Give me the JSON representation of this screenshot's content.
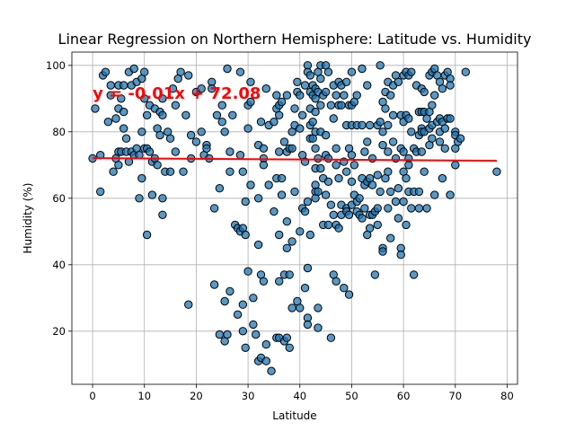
{
  "chart_data": {
    "type": "scatter",
    "title": "Linear Regression on Northern Hemisphere: Latitude vs. Humidity",
    "xlabel": "Latitude",
    "ylabel": "Humidity (%)",
    "xlim": [
      -4,
      82
    ],
    "ylim": [
      4,
      104
    ],
    "xticks": [
      0,
      10,
      20,
      30,
      40,
      50,
      60,
      70,
      80
    ],
    "yticks": [
      20,
      40,
      60,
      80,
      100
    ],
    "grid": true,
    "point_color": "#1f77b4",
    "line_color": "#ff0000",
    "regression": {
      "slope": -0.01,
      "intercept": 72.08,
      "x_range": [
        0,
        78
      ],
      "equation": "y = -0.01x + 72.08",
      "equation_anchor": [
        0,
        90
      ]
    },
    "points": [
      [
        0,
        72
      ],
      [
        0.5,
        87
      ],
      [
        1.5,
        73
      ],
      [
        1.5,
        62
      ],
      [
        2,
        97
      ],
      [
        2.5,
        98
      ],
      [
        3,
        83
      ],
      [
        3.5,
        91
      ],
      [
        3.5,
        94
      ],
      [
        4,
        68
      ],
      [
        4.5,
        72
      ],
      [
        4.5,
        84
      ],
      [
        5,
        94
      ],
      [
        5,
        87
      ],
      [
        5,
        74
      ],
      [
        5,
        70
      ],
      [
        5.5,
        90
      ],
      [
        5.5,
        74
      ],
      [
        6,
        94
      ],
      [
        6,
        86
      ],
      [
        6,
        81
      ],
      [
        6.5,
        78
      ],
      [
        6.5,
        74
      ],
      [
        7,
        98
      ],
      [
        7,
        71
      ],
      [
        7.5,
        94
      ],
      [
        7.5,
        74
      ],
      [
        8,
        99
      ],
      [
        8,
        73
      ],
      [
        8.5,
        95
      ],
      [
        8.5,
        75
      ],
      [
        9,
        73
      ],
      [
        9,
        60
      ],
      [
        9.5,
        96
      ],
      [
        9.5,
        80
      ],
      [
        9.5,
        66
      ],
      [
        10,
        98
      ],
      [
        10,
        90
      ],
      [
        10,
        75
      ],
      [
        10.5,
        85
      ],
      [
        10.5,
        75
      ],
      [
        10.5,
        49
      ],
      [
        11,
        88
      ],
      [
        11,
        74
      ],
      [
        11.5,
        71
      ],
      [
        11.5,
        61
      ],
      [
        12,
        87
      ],
      [
        12,
        72
      ],
      [
        12.5,
        81
      ],
      [
        12.5,
        70
      ],
      [
        13,
        86
      ],
      [
        13,
        79
      ],
      [
        13.5,
        90
      ],
      [
        13.5,
        85
      ],
      [
        13.5,
        60
      ],
      [
        13.5,
        55
      ],
      [
        14,
        68
      ],
      [
        14.5,
        80
      ],
      [
        15,
        78
      ],
      [
        15,
        68
      ],
      [
        15.5,
        93
      ],
      [
        16,
        88
      ],
      [
        16,
        74
      ],
      [
        16.5,
        96
      ],
      [
        17,
        98
      ],
      [
        17.5,
        68
      ],
      [
        18,
        85
      ],
      [
        18.5,
        97
      ],
      [
        18.5,
        28
      ],
      [
        19,
        79
      ],
      [
        19,
        72
      ],
      [
        20,
        92
      ],
      [
        20,
        77
      ],
      [
        21,
        93
      ],
      [
        21,
        80
      ],
      [
        21.5,
        73
      ],
      [
        22,
        76
      ],
      [
        22,
        75
      ],
      [
        22.5,
        72
      ],
      [
        23,
        95
      ],
      [
        23,
        93
      ],
      [
        23.5,
        57
      ],
      [
        23.5,
        34
      ],
      [
        24,
        85
      ],
      [
        24.5,
        63
      ],
      [
        24.5,
        19
      ],
      [
        25,
        88
      ],
      [
        25,
        83
      ],
      [
        25.5,
        80
      ],
      [
        25.5,
        29
      ],
      [
        25.5,
        17
      ],
      [
        26,
        99
      ],
      [
        26,
        19
      ],
      [
        26.5,
        74
      ],
      [
        26.5,
        68
      ],
      [
        26.5,
        32
      ],
      [
        27,
        85
      ],
      [
        27.5,
        52
      ],
      [
        28,
        51
      ],
      [
        28,
        25
      ],
      [
        28.5,
        98
      ],
      [
        28.5,
        73
      ],
      [
        28.5,
        50
      ],
      [
        29,
        68
      ],
      [
        29,
        51
      ],
      [
        29,
        28
      ],
      [
        29,
        20
      ],
      [
        29.5,
        59
      ],
      [
        29.5,
        49
      ],
      [
        29.5,
        15
      ],
      [
        30,
        88
      ],
      [
        30,
        81
      ],
      [
        30,
        38
      ],
      [
        30.5,
        95
      ],
      [
        30.5,
        89
      ],
      [
        30.5,
        64
      ],
      [
        31,
        30
      ],
      [
        31,
        22
      ],
      [
        31.5,
        19
      ],
      [
        32,
        76
      ],
      [
        32,
        60
      ],
      [
        32,
        46
      ],
      [
        32,
        11
      ],
      [
        32.5,
        83
      ],
      [
        32.5,
        37
      ],
      [
        32.5,
        12
      ],
      [
        33,
        75
      ],
      [
        33,
        72
      ],
      [
        33,
        70
      ],
      [
        33,
        35
      ],
      [
        33.5,
        93
      ],
      [
        33.5,
        16
      ],
      [
        33.5,
        11
      ],
      [
        34,
        82
      ],
      [
        34,
        64
      ],
      [
        34.5,
        8
      ],
      [
        35,
        83
      ],
      [
        35,
        56
      ],
      [
        35.5,
        91
      ],
      [
        35.5,
        87
      ],
      [
        35.5,
        66
      ],
      [
        35.5,
        18
      ],
      [
        36,
        88
      ],
      [
        36,
        85
      ],
      [
        36,
        74
      ],
      [
        36,
        49
      ],
      [
        36,
        35
      ],
      [
        36,
        18
      ],
      [
        36.5,
        89
      ],
      [
        36.5,
        66
      ],
      [
        36.5,
        61
      ],
      [
        37,
        77
      ],
      [
        37,
        37
      ],
      [
        37,
        17
      ],
      [
        37.5,
        91
      ],
      [
        37.5,
        74
      ],
      [
        37.5,
        53
      ],
      [
        37.5,
        45
      ],
      [
        37.5,
        18
      ],
      [
        38,
        75
      ],
      [
        38,
        37
      ],
      [
        38,
        15
      ],
      [
        38.5,
        80
      ],
      [
        38.5,
        75
      ],
      [
        38.5,
        47
      ],
      [
        38.5,
        27
      ],
      [
        39,
        87
      ],
      [
        39,
        82
      ],
      [
        39,
        62
      ],
      [
        39.5,
        95
      ],
      [
        39.5,
        92
      ],
      [
        39.5,
        29
      ],
      [
        40,
        91
      ],
      [
        40,
        81
      ],
      [
        40,
        50
      ],
      [
        40,
        27
      ],
      [
        40.5,
        85
      ],
      [
        40.5,
        73
      ],
      [
        40.5,
        57
      ],
      [
        41,
        94
      ],
      [
        41,
        71
      ],
      [
        41,
        56
      ],
      [
        41,
        33
      ],
      [
        41.5,
        100
      ],
      [
        41.5,
        98
      ],
      [
        41.5,
        59
      ],
      [
        41.5,
        39
      ],
      [
        41.5,
        24
      ],
      [
        41.5,
        22
      ],
      [
        42,
        97
      ],
      [
        42,
        92
      ],
      [
        42,
        87
      ],
      [
        42,
        82
      ],
      [
        42,
        78
      ],
      [
        42,
        49
      ],
      [
        42.5,
        94
      ],
      [
        42.5,
        91
      ],
      [
        42.5,
        83
      ],
      [
        42.5,
        78
      ],
      [
        43,
        93
      ],
      [
        43,
        90
      ],
      [
        43,
        86
      ],
      [
        43,
        80
      ],
      [
        43,
        75
      ],
      [
        43,
        69
      ],
      [
        43,
        64
      ],
      [
        43,
        62
      ],
      [
        43,
        60
      ],
      [
        43.5,
        98
      ],
      [
        43.5,
        92
      ],
      [
        43.5,
        72
      ],
      [
        43.5,
        62
      ],
      [
        43.5,
        27
      ],
      [
        43.5,
        21
      ],
      [
        44,
        100
      ],
      [
        44,
        96
      ],
      [
        44,
        88
      ],
      [
        44,
        80
      ],
      [
        44,
        69
      ],
      [
        44.5,
        91
      ],
      [
        44.5,
        66
      ],
      [
        44.5,
        52
      ],
      [
        45,
        100
      ],
      [
        45,
        92
      ],
      [
        45,
        79
      ],
      [
        45,
        73
      ],
      [
        45,
        61
      ],
      [
        45.5,
        98
      ],
      [
        45.5,
        72
      ],
      [
        45.5,
        65
      ],
      [
        45.5,
        52
      ],
      [
        46,
        88
      ],
      [
        46,
        58
      ],
      [
        46,
        18
      ],
      [
        46.5,
        94
      ],
      [
        46.5,
        84
      ],
      [
        46.5,
        55
      ],
      [
        46.5,
        37
      ],
      [
        47,
        91
      ],
      [
        47,
        75
      ],
      [
        47,
        70
      ],
      [
        47,
        52
      ],
      [
        47,
        35
      ],
      [
        47.5,
        95
      ],
      [
        47.5,
        88
      ],
      [
        47.5,
        66
      ],
      [
        47.5,
        51
      ],
      [
        48,
        94
      ],
      [
        48,
        88
      ],
      [
        48,
        58
      ],
      [
        48,
        55
      ],
      [
        48.5,
        91
      ],
      [
        48.5,
        71
      ],
      [
        48.5,
        33
      ],
      [
        49,
        95
      ],
      [
        49,
        82
      ],
      [
        49,
        68
      ],
      [
        49,
        57
      ],
      [
        49,
        56
      ],
      [
        49.5,
        88
      ],
      [
        49.5,
        75
      ],
      [
        49.5,
        55
      ],
      [
        49.5,
        31
      ],
      [
        50,
        98
      ],
      [
        50,
        88
      ],
      [
        50,
        82
      ],
      [
        50,
        73
      ],
      [
        50,
        65
      ],
      [
        50,
        58
      ],
      [
        50.5,
        89
      ],
      [
        50.5,
        70
      ],
      [
        50.5,
        61
      ],
      [
        51,
        91
      ],
      [
        51,
        82
      ],
      [
        51,
        59
      ],
      [
        51,
        56
      ],
      [
        51.5,
        60
      ],
      [
        51.5,
        55
      ],
      [
        52,
        99
      ],
      [
        52,
        82
      ],
      [
        52,
        66
      ],
      [
        52,
        54
      ],
      [
        52.5,
        74
      ],
      [
        52.5,
        64
      ],
      [
        52.5,
        57
      ],
      [
        53,
        94
      ],
      [
        53,
        77
      ],
      [
        53,
        65
      ],
      [
        53,
        49
      ],
      [
        53.5,
        82
      ],
      [
        53.5,
        66
      ],
      [
        53.5,
        55
      ],
      [
        53.5,
        51
      ],
      [
        54,
        72
      ],
      [
        54,
        64
      ],
      [
        54,
        55
      ],
      [
        54.5,
        56
      ],
      [
        54.5,
        37
      ],
      [
        55,
        82
      ],
      [
        55,
        67
      ],
      [
        55,
        57
      ],
      [
        55,
        52
      ],
      [
        55.5,
        100
      ],
      [
        55.5,
        83
      ],
      [
        55.5,
        62
      ],
      [
        56,
        89
      ],
      [
        56,
        80
      ],
      [
        56,
        76
      ],
      [
        56,
        45
      ],
      [
        56,
        44
      ],
      [
        56.5,
        92
      ],
      [
        56.5,
        87
      ],
      [
        56.5,
        66
      ],
      [
        57,
        95
      ],
      [
        57,
        82
      ],
      [
        57,
        74
      ],
      [
        57,
        68
      ],
      [
        57,
        57
      ],
      [
        57.5,
        91
      ],
      [
        57.5,
        62
      ],
      [
        57.5,
        48
      ],
      [
        58,
        94
      ],
      [
        58,
        85
      ],
      [
        58,
        77
      ],
      [
        58.5,
        97
      ],
      [
        58.5,
        72
      ],
      [
        58.5,
        59
      ],
      [
        59,
        95
      ],
      [
        59,
        63
      ],
      [
        59,
        54
      ],
      [
        59.5,
        85
      ],
      [
        59.5,
        75
      ],
      [
        59.5,
        45
      ],
      [
        59.5,
        43
      ],
      [
        60,
        97
      ],
      [
        60,
        83
      ],
      [
        60,
        74
      ],
      [
        60,
        68
      ],
      [
        60,
        59
      ],
      [
        60.5,
        98
      ],
      [
        60.5,
        85
      ],
      [
        60.5,
        66
      ],
      [
        60.5,
        52
      ],
      [
        61,
        97
      ],
      [
        61,
        84
      ],
      [
        61,
        72
      ],
      [
        61,
        70
      ],
      [
        61,
        62
      ],
      [
        61.5,
        98
      ],
      [
        61.5,
        80
      ],
      [
        61.5,
        57
      ],
      [
        62,
        75
      ],
      [
        62,
        62
      ],
      [
        62,
        37
      ],
      [
        62.5,
        94
      ],
      [
        62.5,
        74
      ],
      [
        63,
        86
      ],
      [
        63,
        79
      ],
      [
        63,
        62
      ],
      [
        63,
        57
      ],
      [
        63.5,
        93
      ],
      [
        63.5,
        86
      ],
      [
        63.5,
        81
      ],
      [
        63.5,
        80
      ],
      [
        63.5,
        74
      ],
      [
        64,
        92
      ],
      [
        64,
        86
      ],
      [
        64,
        80
      ],
      [
        64,
        68
      ],
      [
        64.5,
        84
      ],
      [
        64.5,
        57
      ],
      [
        65,
        97
      ],
      [
        65,
        86
      ],
      [
        65,
        81
      ],
      [
        65,
        76
      ],
      [
        65.5,
        98
      ],
      [
        65.5,
        88
      ],
      [
        65.5,
        82
      ],
      [
        65.5,
        78
      ],
      [
        66,
        99
      ],
      [
        66,
        91
      ],
      [
        66,
        61
      ],
      [
        66.5,
        97
      ],
      [
        66.5,
        83
      ],
      [
        67,
        95
      ],
      [
        67,
        84
      ],
      [
        67,
        80
      ],
      [
        67,
        77
      ],
      [
        67.5,
        93
      ],
      [
        67.5,
        83
      ],
      [
        67.5,
        66
      ],
      [
        68,
        97
      ],
      [
        68,
        81
      ],
      [
        68,
        75
      ],
      [
        68.5,
        98
      ],
      [
        68.5,
        84
      ],
      [
        69,
        96
      ],
      [
        69,
        94
      ],
      [
        69,
        84
      ],
      [
        69,
        61
      ],
      [
        70,
        80
      ],
      [
        70,
        79
      ],
      [
        70,
        75
      ],
      [
        70,
        70
      ],
      [
        70.5,
        77
      ],
      [
        71,
        78
      ],
      [
        72,
        98
      ],
      [
        78,
        68
      ]
    ]
  }
}
